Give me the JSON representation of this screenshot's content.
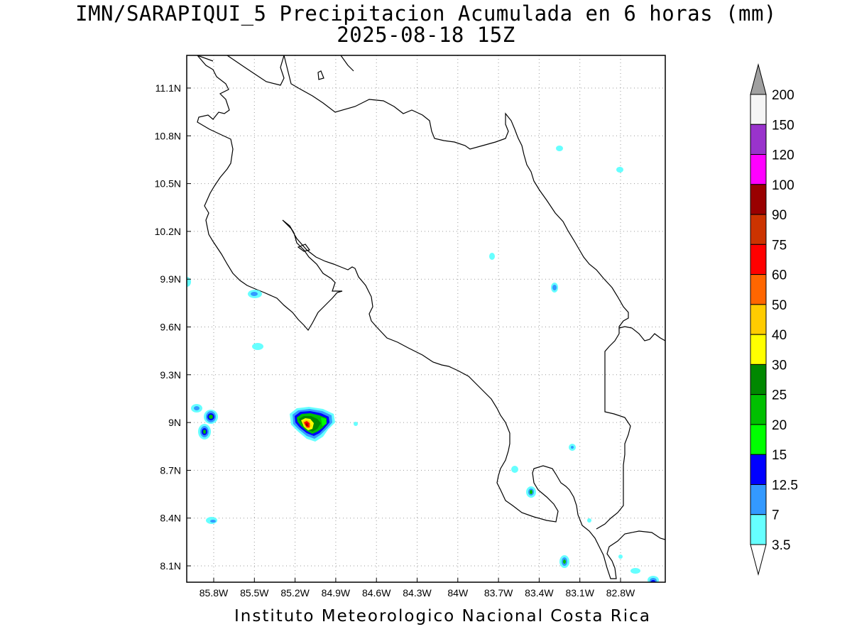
{
  "title_line1": "IMN/SARAPIQUI_5 Precipitacion Acumulada en 6 horas (mm)",
  "title_line2": "2025-08-18 15Z",
  "footer": "Instituto Meteorologico Nacional Costa Rica",
  "axes": {
    "lon_ticks": [
      "85.8W",
      "85.5W",
      "85.2W",
      "84.9W",
      "84.6W",
      "84.3W",
      "84W",
      "83.7W",
      "83.4W",
      "83.1W",
      "82.8W"
    ],
    "lat_ticks": [
      "11.1N",
      "10.8N",
      "10.5N",
      "10.2N",
      "9.9N",
      "9.6N",
      "9.3N",
      "9N",
      "8.7N",
      "8.4N",
      "8.1N"
    ]
  },
  "colorbar": {
    "labels": [
      "200",
      "150",
      "120",
      "100",
      "90",
      "75",
      "60",
      "50",
      "40",
      "30",
      "25",
      "20",
      "15",
      "12.5",
      "7",
      "3.5"
    ],
    "colors": [
      "#f5f5f5",
      "#9933cc",
      "#ff00ff",
      "#990000",
      "#cc3300",
      "#ff0000",
      "#ff6600",
      "#ffcc00",
      "#ffff00",
      "#008800",
      "#00c000",
      "#00ff00",
      "#0000ff",
      "#3399ff",
      "#66ffff"
    ],
    "over_color": "#a0a0a0",
    "under_color": "#ffffff"
  }
}
